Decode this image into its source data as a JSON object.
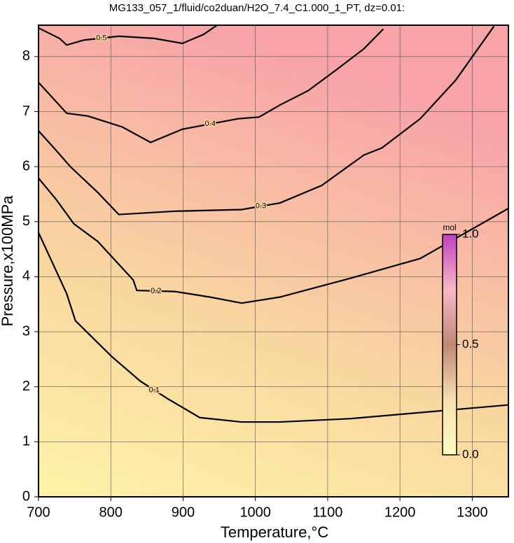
{
  "chart_data": {
    "type": "contour",
    "title": "MG133_057_1/fluid/co2duan/H2O_7.4_C1.000_1_PT, dz=0.01:",
    "x_label": "Temperature,°C",
    "y_label": "Pressure,x100MPa",
    "xlim": [
      700,
      1350
    ],
    "xticks": [
      700,
      800,
      900,
      1000,
      1100,
      1200,
      1300
    ],
    "ylim": [
      0,
      8.57
    ],
    "yticks": [
      0,
      1,
      2,
      3,
      4,
      5,
      6,
      7,
      8
    ],
    "grid": true,
    "series": [
      {
        "name": "0.1",
        "color": "#000000",
        "x": [
          700,
          719,
          739,
          751,
          802,
          841,
          879,
          923,
          981,
          1034,
          1131,
          1350
        ],
        "y": [
          4.8,
          4.26,
          3.69,
          3.2,
          2.54,
          2.1,
          1.78,
          1.44,
          1.36,
          1.36,
          1.42,
          1.67
        ]
      },
      {
        "name": "0.2",
        "color": "#000000",
        "x": [
          700,
          724,
          749,
          782,
          831,
          836,
          889,
          937,
          981,
          1034,
          1131,
          1228,
          1350
        ],
        "y": [
          5.79,
          5.41,
          4.96,
          4.64,
          3.94,
          3.75,
          3.73,
          3.63,
          3.52,
          3.63,
          3.97,
          4.33,
          5.24
        ]
      },
      {
        "name": "0.3",
        "color": "#000000",
        "x": [
          700,
          724,
          744,
          782,
          811,
          889,
          981,
          1034,
          1092,
          1150,
          1175,
          1228,
          1277,
          1330
        ],
        "y": [
          6.65,
          6.3,
          6.0,
          5.53,
          5.13,
          5.19,
          5.22,
          5.34,
          5.66,
          6.21,
          6.34,
          6.87,
          7.57,
          8.55
        ]
      },
      {
        "name": "0.4",
        "color": "#000000",
        "x": [
          700,
          739,
          768,
          816,
          855,
          899,
          976,
          1005,
          1034,
          1073,
          1112,
          1150,
          1177
        ],
        "y": [
          7.53,
          6.97,
          6.92,
          6.72,
          6.44,
          6.68,
          6.87,
          6.9,
          7.12,
          7.38,
          7.76,
          8.14,
          8.5
        ]
      },
      {
        "name": "0.5",
        "color": "#000000",
        "x": [
          700,
          729,
          739,
          763,
          811,
          860,
          899,
          928,
          947
        ],
        "y": [
          8.52,
          8.33,
          8.21,
          8.3,
          8.37,
          8.33,
          8.24,
          8.4,
          8.57
        ]
      }
    ],
    "colorbar": {
      "label": "mol",
      "lim": [
        0,
        1
      ],
      "ticks": [
        {
          "value": 0,
          "label": "0.0"
        },
        {
          "value": 0.5,
          "label": "0.5"
        },
        {
          "value": 1,
          "label": "1.0"
        }
      ]
    }
  }
}
